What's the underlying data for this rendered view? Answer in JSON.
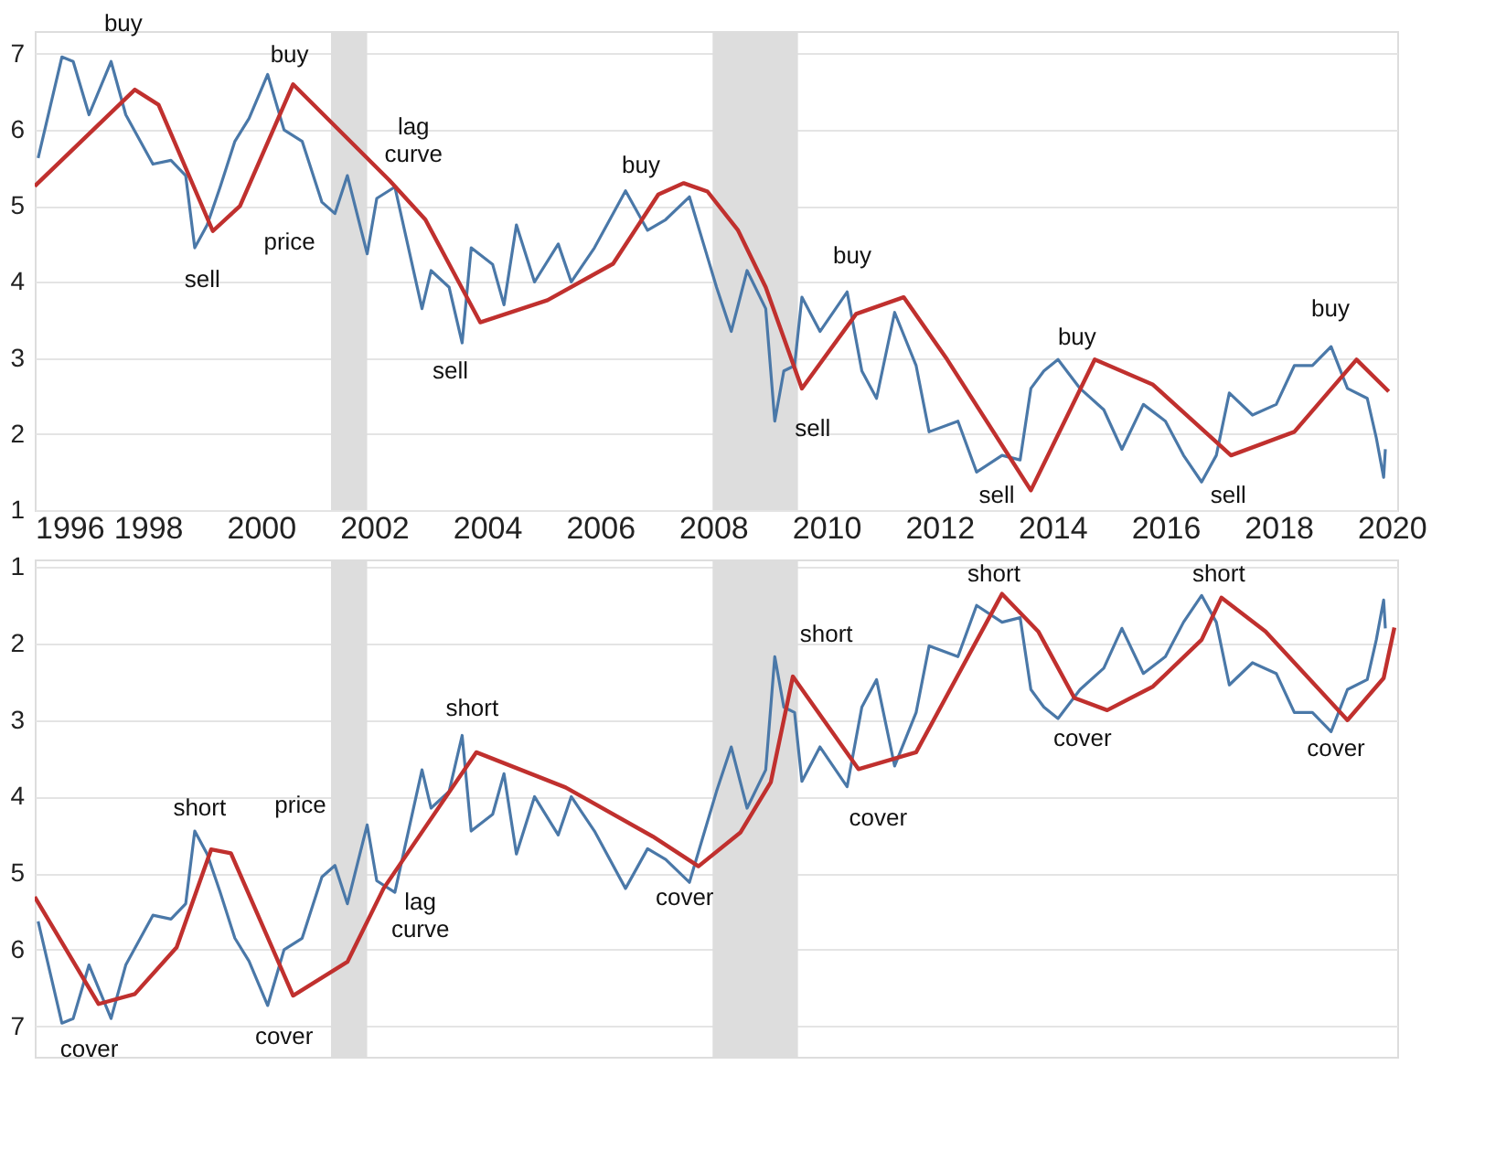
{
  "chart_data": [
    {
      "type": "line",
      "xlim": [
        1996,
        2020.1
      ],
      "xticks": [
        1996,
        1998,
        2000,
        2002,
        2004,
        2006,
        2008,
        2010,
        2012,
        2014,
        2016,
        2018,
        2020
      ],
      "ylim": [
        1,
        7.3
      ],
      "yticks": [
        1,
        2,
        3,
        4,
        5,
        6,
        7
      ],
      "grid": "y",
      "line_style": "solid",
      "marker": "none",
      "series": [
        {
          "color": "#4a78a8",
          "x": [
            1996.06,
            1996.48,
            1996.68,
            1996.96,
            1997.35,
            1997.61,
            1998.09,
            1998.41,
            1998.67,
            1998.83,
            1999.05,
            1999.28,
            1999.54,
            1999.79,
            2000.12,
            2000.41,
            2000.73,
            2001.08,
            2001.31,
            2001.53,
            2001.88,
            2002.05,
            2002.37,
            2002.85,
            2003.01,
            2003.33,
            2003.56,
            2003.72,
            2004.1,
            2004.3,
            2004.52,
            2004.84,
            2005.26,
            2005.49,
            2005.9,
            2006.45,
            2006.84,
            2007.16,
            2007.58,
            2007.83,
            2008.06,
            2008.32,
            2008.6,
            2008.93,
            2009.09,
            2009.25,
            2009.44,
            2009.57,
            2009.89,
            2010.37,
            2010.63,
            2010.89,
            2011.21,
            2011.59,
            2011.82,
            2012.33,
            2012.66,
            2013.11,
            2013.43,
            2013.62,
            2013.85,
            2014.1,
            2014.49,
            2014.91,
            2015.23,
            2015.61,
            2016.0,
            2016.32,
            2016.64,
            2016.9,
            2017.13,
            2017.54,
            2017.96,
            2018.28,
            2018.6,
            2018.93,
            2019.22,
            2019.57,
            2019.73,
            2019.86,
            2019.89
          ],
          "values": [
            5.63,
            6.96,
            6.9,
            6.2,
            6.9,
            6.2,
            5.55,
            5.6,
            5.4,
            4.45,
            4.75,
            5.25,
            5.85,
            6.15,
            6.73,
            6.0,
            5.85,
            5.05,
            4.9,
            5.4,
            4.37,
            5.1,
            5.25,
            3.65,
            4.15,
            3.93,
            3.2,
            4.45,
            4.23,
            3.7,
            4.75,
            4.0,
            4.5,
            4.0,
            4.45,
            5.2,
            4.68,
            4.82,
            5.12,
            4.5,
            3.93,
            3.35,
            4.15,
            3.65,
            2.17,
            2.83,
            2.9,
            3.8,
            3.35,
            3.87,
            2.83,
            2.47,
            3.6,
            2.9,
            2.03,
            2.17,
            1.5,
            1.72,
            1.66,
            2.6,
            2.83,
            2.98,
            2.6,
            2.32,
            1.8,
            2.39,
            2.17,
            1.72,
            1.37,
            1.72,
            2.54,
            2.25,
            2.39,
            2.9,
            2.9,
            3.15,
            2.6,
            2.47,
            1.95,
            1.43,
            1.8
          ]
        },
        {
          "color": "#c0302e",
          "x": [
            1996.0,
            1997.77,
            1998.19,
            1999.15,
            1999.63,
            2000.57,
            2002.27,
            2002.91,
            2003.88,
            2005.07,
            2006.23,
            2007.03,
            2007.48,
            2007.9,
            2008.44,
            2008.93,
            2009.57,
            2010.53,
            2011.37,
            2012.14,
            2013.62,
            2014.75,
            2015.78,
            2017.16,
            2018.28,
            2019.38,
            2019.95
          ],
          "values": [
            5.26,
            6.53,
            6.33,
            4.67,
            5.0,
            6.6,
            5.34,
            4.82,
            3.47,
            3.76,
            4.24,
            5.15,
            5.3,
            5.19,
            4.68,
            3.93,
            2.6,
            3.58,
            3.8,
            2.98,
            1.26,
            2.98,
            2.65,
            1.72,
            2.03,
            2.98,
            2.56
          ]
        }
      ],
      "bands": [
        {
          "axis": "x",
          "from": 2001.24,
          "to": 2001.88,
          "color": "#dddddd"
        },
        {
          "axis": "x",
          "from": 2007.99,
          "to": 2009.5,
          "color": "#dddddd"
        }
      ],
      "annotations": [
        "buy",
        "buy",
        "sell",
        "sell",
        "buy",
        "buy",
        "sell",
        "sell",
        "buy",
        "sell",
        "buy",
        "price",
        "lag curve"
      ]
    },
    {
      "type": "line",
      "xlim": [
        1996,
        2020.1
      ],
      "ylim": [
        7.4,
        0.9
      ],
      "yticks": [
        1,
        2,
        3,
        4,
        5,
        6,
        7
      ],
      "grid": "y",
      "tick_labels": "y",
      "line_style": "solid",
      "marker": "none",
      "series": [
        {
          "color": "#4a78a8",
          "x": [
            1996.06,
            1996.48,
            1996.68,
            1996.96,
            1997.35,
            1997.61,
            1998.09,
            1998.41,
            1998.67,
            1998.83,
            1999.05,
            1999.28,
            1999.54,
            1999.79,
            2000.12,
            2000.41,
            2000.73,
            2001.08,
            2001.31,
            2001.53,
            2001.88,
            2002.05,
            2002.37,
            2002.85,
            2003.01,
            2003.33,
            2003.56,
            2003.72,
            2004.1,
            2004.3,
            2004.52,
            2004.84,
            2005.26,
            2005.49,
            2005.9,
            2006.45,
            2006.84,
            2007.16,
            2007.58,
            2007.83,
            2008.06,
            2008.32,
            2008.6,
            2008.93,
            2009.09,
            2009.25,
            2009.44,
            2009.57,
            2009.89,
            2010.37,
            2010.63,
            2010.89,
            2011.21,
            2011.59,
            2011.82,
            2012.33,
            2012.66,
            2013.11,
            2013.43,
            2013.62,
            2013.85,
            2014.1,
            2014.49,
            2014.91,
            2015.23,
            2015.61,
            2016.0,
            2016.32,
            2016.64,
            2016.9,
            2017.13,
            2017.54,
            2017.96,
            2018.28,
            2018.6,
            2018.93,
            2019.22,
            2019.57,
            2019.73,
            2019.86,
            2019.89
          ],
          "values": [
            5.63,
            6.96,
            6.9,
            6.2,
            6.9,
            6.2,
            5.55,
            5.6,
            5.4,
            4.45,
            4.75,
            5.25,
            5.85,
            6.15,
            6.73,
            6.0,
            5.85,
            5.05,
            4.9,
            5.4,
            4.37,
            5.1,
            5.25,
            3.65,
            4.15,
            3.93,
            3.2,
            4.45,
            4.23,
            3.7,
            4.75,
            4.0,
            4.5,
            4.0,
            4.45,
            5.2,
            4.68,
            4.82,
            5.12,
            4.5,
            3.93,
            3.35,
            4.15,
            3.65,
            2.17,
            2.83,
            2.9,
            3.8,
            3.35,
            3.87,
            2.83,
            2.47,
            3.6,
            2.9,
            2.03,
            2.17,
            1.5,
            1.72,
            1.66,
            2.6,
            2.83,
            2.98,
            2.6,
            2.32,
            1.8,
            2.39,
            2.17,
            1.72,
            1.37,
            1.72,
            2.54,
            2.25,
            2.39,
            2.9,
            2.9,
            3.15,
            2.6,
            2.47,
            1.95,
            1.43,
            1.8
          ]
        },
        {
          "color": "#c0302e",
          "x": [
            1996.0,
            1997.13,
            1997.77,
            1998.51,
            1999.12,
            1999.47,
            2000.57,
            2001.53,
            2002.17,
            2003.81,
            2005.39,
            2006.93,
            2007.74,
            2008.48,
            2009.02,
            2009.41,
            2010.57,
            2011.59,
            2013.11,
            2013.75,
            2014.39,
            2014.97,
            2015.78,
            2016.64,
            2016.99,
            2017.77,
            2019.22,
            2019.86,
            2020.05
          ],
          "values": [
            5.31,
            6.71,
            6.58,
            5.97,
            4.69,
            4.74,
            6.6,
            6.16,
            5.2,
            3.42,
            3.88,
            4.52,
            4.91,
            4.47,
            3.81,
            2.43,
            3.64,
            3.42,
            1.35,
            1.84,
            2.71,
            2.87,
            2.56,
            1.95,
            1.4,
            1.84,
            3.0,
            2.45,
            1.79
          ]
        }
      ],
      "bands": [
        {
          "axis": "x",
          "from": 2001.24,
          "to": 2001.88,
          "color": "#dddddd"
        },
        {
          "axis": "x",
          "from": 2007.99,
          "to": 2009.5,
          "color": "#dddddd"
        }
      ],
      "annotations": [
        "cover",
        "short",
        "price",
        "cover",
        "lag curve",
        "short",
        "cover",
        "short",
        "cover",
        "short",
        "cover",
        "short",
        "cover"
      ]
    }
  ]
}
